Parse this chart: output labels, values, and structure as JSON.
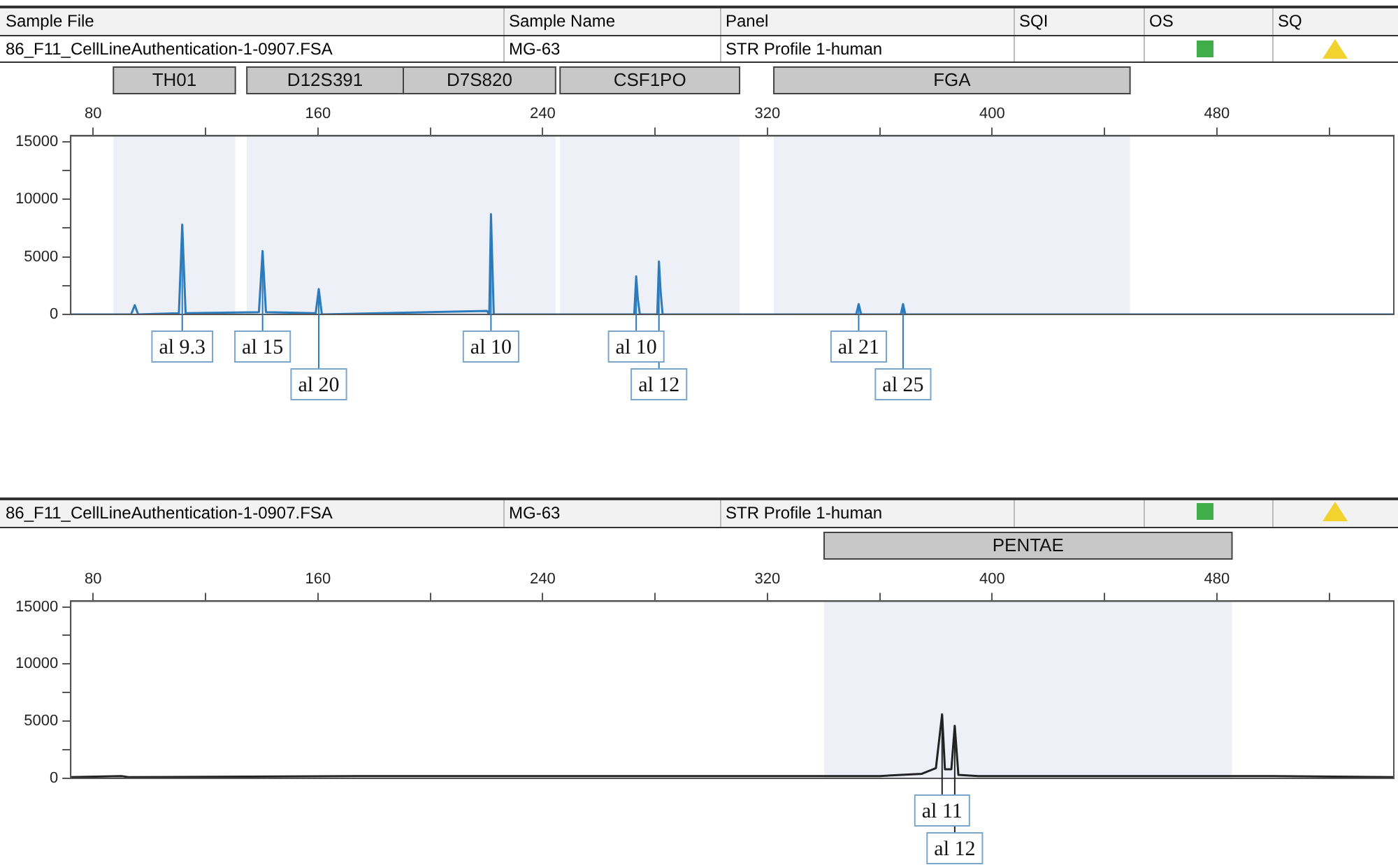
{
  "chart_data": [
    {
      "type": "line",
      "series": [
        {
          "color": "#2b7bbd",
          "x": [
            72,
            93.5,
            94.8,
            96,
            110.5,
            111.7,
            112.9,
            139,
            140.3,
            141.5,
            159.2,
            160.3,
            161.4,
            220.2,
            221,
            221.6,
            222.6,
            272.6,
            273.3,
            273.9,
            274.6,
            280.8,
            281.4,
            282,
            282.7,
            351.6,
            352.5,
            353.4,
            367.5,
            368.3,
            369.1,
            543
          ],
          "values": [
            0,
            0,
            800,
            0,
            100,
            7800,
            100,
            200,
            5500,
            200,
            100,
            2200,
            0,
            300,
            0,
            8700,
            0,
            0,
            3300,
            1300,
            0,
            0,
            4600,
            2000,
            0,
            0,
            900,
            0,
            0,
            900,
            0,
            0
          ]
        }
      ],
      "xlim": [
        72,
        543
      ],
      "xticks": [
        80,
        {
          "value": 120,
          "label": null
        },
        160,
        {
          "value": 200,
          "label": null
        },
        240,
        {
          "value": 280,
          "label": null
        },
        320,
        {
          "value": 360,
          "label": null
        },
        400,
        {
          "value": 440,
          "label": null
        },
        480,
        {
          "value": 520,
          "label": null
        }
      ],
      "ylim": [
        0,
        15500
      ],
      "yticks": [
        0,
        {
          "value": 2500,
          "label": null
        },
        5000,
        {
          "value": 7500,
          "label": null
        },
        10000,
        {
          "value": 12500,
          "label": null
        },
        15000
      ],
      "bands": [
        {
          "axis": "x",
          "from": 87.2,
          "to": 130.6,
          "label": "TH01",
          "color": "#edf0f6"
        },
        {
          "axis": "x",
          "from": 134.7,
          "to": 190.4,
          "label": "D12S391",
          "color": "#edf0f6"
        },
        {
          "axis": "x",
          "from": 190.4,
          "to": 244.6,
          "label": "D7S820",
          "color": "#edf0f6"
        },
        {
          "axis": "x",
          "from": 246.2,
          "to": 310.1,
          "label": "CSF1PO",
          "color": "#edf0f6"
        },
        {
          "axis": "x",
          "from": 322.3,
          "to": 449.1,
          "label": "FGA",
          "color": "#edf0f6"
        }
      ],
      "annotations": [
        "Sample File",
        "Sample Name",
        "Panel",
        "SQI",
        "OS",
        "SQ",
        "86_F11_CellLineAuthentication-1-0907.FSA",
        "MG-63",
        "STR Profile 1-human",
        {
          "text": "al 9.3",
          "x": 111.7,
          "y": 7800
        },
        {
          "text": "al 15",
          "x": 140.3,
          "y": 5500
        },
        {
          "text": "al 20",
          "x": 160.3,
          "y": 2200
        },
        {
          "text": "al 10",
          "x": 221.6,
          "y": 8700
        },
        {
          "text": "al 10",
          "x": 273.3,
          "y": 3300
        },
        {
          "text": "al 12",
          "x": 281.4,
          "y": 4600
        },
        {
          "text": "al 21",
          "x": 352.5,
          "y": 900
        },
        {
          "text": "al 25",
          "x": 368.3,
          "y": 900
        }
      ]
    },
    {
      "type": "line",
      "series": [
        {
          "color": "#222222",
          "x": [
            72,
            90,
            93,
            180,
            300,
            360,
            375,
            380,
            382.2,
            383.2,
            385.5,
            386.7,
            388,
            395,
            500,
            543
          ],
          "values": [
            100,
            200,
            100,
            200,
            200,
            200,
            400,
            900,
            5600,
            800,
            800,
            4600,
            300,
            200,
            200,
            100
          ]
        }
      ],
      "xlim": [
        72,
        543
      ],
      "xticks": [
        80,
        {
          "value": 120,
          "label": null
        },
        160,
        {
          "value": 200,
          "label": null
        },
        240,
        {
          "value": 280,
          "label": null
        },
        320,
        {
          "value": 360,
          "label": null
        },
        400,
        {
          "value": 440,
          "label": null
        },
        480,
        {
          "value": 520,
          "label": null
        }
      ],
      "ylim": [
        0,
        15500
      ],
      "yticks": [
        0,
        {
          "value": 2500,
          "label": null
        },
        5000,
        {
          "value": 7500,
          "label": null
        },
        10000,
        {
          "value": 12500,
          "label": null
        },
        15000
      ],
      "bands": [
        {
          "axis": "x",
          "from": 340.2,
          "to": 485.4,
          "label": "PENTAE",
          "color": "#edf0f6"
        }
      ],
      "annotations": [
        "86_F11_CellLineAuthentication-1-0907.FSA",
        "MG-63",
        "STR Profile 1-human",
        {
          "text": "al 11",
          "x": 382.2,
          "y": 5600
        },
        {
          "text": "al 12",
          "x": 386.7,
          "y": 4600
        }
      ]
    }
  ]
}
